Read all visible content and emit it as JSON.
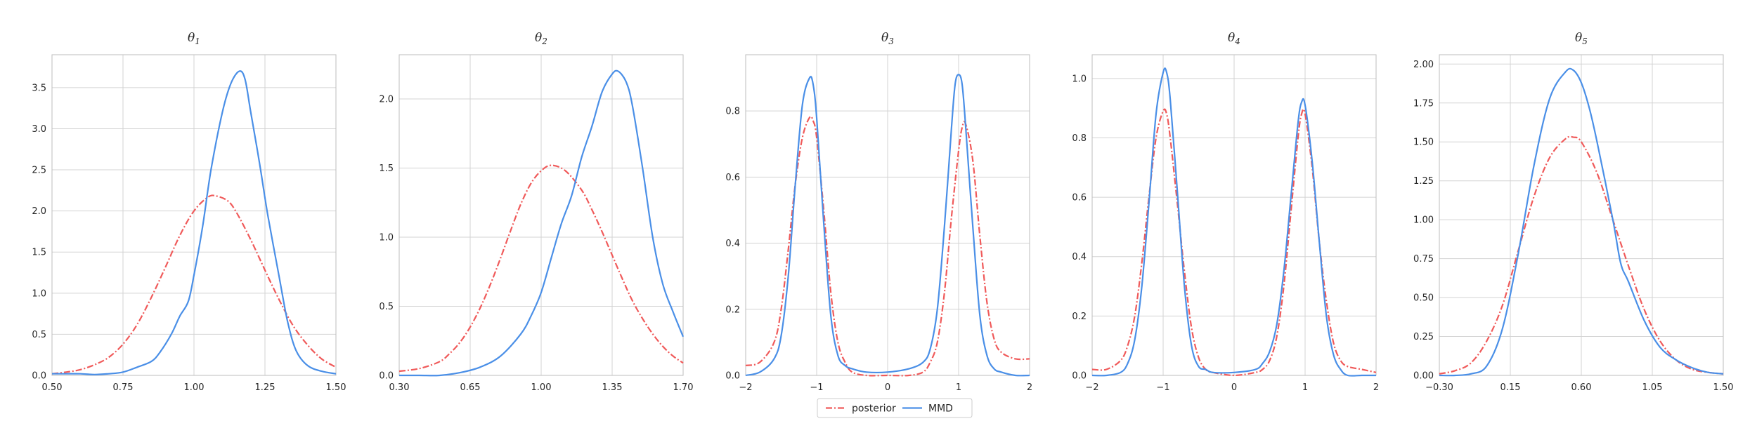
{
  "chart_data": [
    {
      "type": "line",
      "title": "θ1",
      "title_symbol": "θ",
      "title_sub": "1",
      "xlim": [
        0.5,
        1.5
      ],
      "ylim": [
        0,
        3.9
      ],
      "xticks": [
        0.5,
        0.75,
        1.0,
        1.25,
        1.5
      ],
      "xtick_labels": [
        "0.50",
        "0.75",
        "1.00",
        "1.25",
        "1.50"
      ],
      "yticks": [
        0,
        0.5,
        1.0,
        1.5,
        2.0,
        2.5,
        3.0,
        3.5
      ],
      "ytick_labels": [
        "0.0",
        "0.5",
        "1.0",
        "1.5",
        "2.0",
        "2.5",
        "3.0",
        "3.5"
      ],
      "series": [
        {
          "name": "posterior",
          "x": [
            0.5,
            0.55,
            0.6,
            0.65,
            0.7,
            0.75,
            0.8,
            0.85,
            0.9,
            0.95,
            1.0,
            1.05,
            1.08,
            1.12,
            1.15,
            1.2,
            1.25,
            1.3,
            1.35,
            1.4,
            1.45,
            1.5
          ],
          "y": [
            0.02,
            0.04,
            0.07,
            0.13,
            0.22,
            0.38,
            0.62,
            0.95,
            1.32,
            1.7,
            2.0,
            2.17,
            2.18,
            2.12,
            1.98,
            1.65,
            1.28,
            0.92,
            0.6,
            0.37,
            0.2,
            0.1
          ]
        },
        {
          "name": "MMD",
          "x": [
            0.5,
            0.55,
            0.6,
            0.65,
            0.7,
            0.75,
            0.8,
            0.85,
            0.88,
            0.92,
            0.95,
            0.98,
            1.0,
            1.03,
            1.06,
            1.1,
            1.13,
            1.16,
            1.18,
            1.2,
            1.23,
            1.26,
            1.3,
            1.33,
            1.36,
            1.4,
            1.45,
            1.5
          ],
          "y": [
            0.02,
            0.02,
            0.02,
            0.01,
            0.02,
            0.04,
            0.1,
            0.17,
            0.28,
            0.5,
            0.72,
            0.9,
            1.22,
            1.8,
            2.5,
            3.2,
            3.55,
            3.7,
            3.6,
            3.2,
            2.6,
            1.95,
            1.2,
            0.65,
            0.3,
            0.12,
            0.05,
            0.02
          ]
        }
      ]
    },
    {
      "type": "line",
      "title": "θ2",
      "title_symbol": "θ",
      "title_sub": "2",
      "xlim": [
        0.3,
        1.7
      ],
      "ylim": [
        0,
        2.32
      ],
      "xticks": [
        0.3,
        0.65,
        1.0,
        1.35,
        1.7
      ],
      "xtick_labels": [
        "0.30",
        "0.65",
        "1.00",
        "1.35",
        "1.70"
      ],
      "yticks": [
        0,
        0.5,
        1.0,
        1.5,
        2.0
      ],
      "ytick_labels": [
        "0.0",
        "0.5",
        "1.0",
        "1.5",
        "2.0"
      ],
      "series": [
        {
          "name": "posterior",
          "x": [
            0.3,
            0.4,
            0.5,
            0.55,
            0.6,
            0.65,
            0.7,
            0.75,
            0.8,
            0.85,
            0.9,
            0.95,
            1.0,
            1.05,
            1.12,
            1.2,
            1.25,
            1.3,
            1.35,
            1.4,
            1.45,
            1.5,
            1.55,
            1.6,
            1.65,
            1.7
          ],
          "y": [
            0.03,
            0.05,
            0.1,
            0.16,
            0.24,
            0.35,
            0.49,
            0.66,
            0.85,
            1.05,
            1.24,
            1.39,
            1.48,
            1.52,
            1.48,
            1.34,
            1.2,
            1.04,
            0.87,
            0.7,
            0.54,
            0.41,
            0.3,
            0.21,
            0.14,
            0.09
          ]
        },
        {
          "name": "MMD",
          "x": [
            0.3,
            0.4,
            0.5,
            0.6,
            0.7,
            0.8,
            0.9,
            0.95,
            1.0,
            1.05,
            1.1,
            1.15,
            1.2,
            1.25,
            1.3,
            1.35,
            1.38,
            1.42,
            1.45,
            1.5,
            1.55,
            1.6,
            1.65,
            1.7
          ],
          "y": [
            0.0,
            0.0,
            0.0,
            0.02,
            0.06,
            0.14,
            0.3,
            0.43,
            0.6,
            0.85,
            1.1,
            1.3,
            1.58,
            1.8,
            2.05,
            2.18,
            2.2,
            2.12,
            1.95,
            1.5,
            1.0,
            0.66,
            0.46,
            0.28
          ]
        }
      ]
    },
    {
      "type": "line",
      "title": "θ3",
      "title_symbol": "θ",
      "title_sub": "3",
      "xlim": [
        -2,
        2
      ],
      "ylim": [
        0,
        0.97
      ],
      "xticks": [
        -2,
        -1,
        0,
        1,
        2
      ],
      "xtick_labels": [
        "−2",
        "−1",
        "0",
        "1",
        "2"
      ],
      "yticks": [
        0,
        0.2,
        0.4,
        0.6,
        0.8
      ],
      "ytick_labels": [
        "0.0",
        "0.2",
        "0.4",
        "0.6",
        "0.8"
      ],
      "series": [
        {
          "name": "posterior",
          "x": [
            -2.0,
            -1.8,
            -1.6,
            -1.5,
            -1.4,
            -1.3,
            -1.2,
            -1.1,
            -1.05,
            -1.0,
            -0.9,
            -0.8,
            -0.7,
            -0.6,
            -0.5,
            -0.3,
            0.0,
            0.3,
            0.5,
            0.6,
            0.7,
            0.8,
            0.9,
            1.0,
            1.05,
            1.1,
            1.2,
            1.3,
            1.4,
            1.5,
            1.6,
            1.8,
            2.0
          ],
          "y": [
            0.03,
            0.04,
            0.1,
            0.2,
            0.38,
            0.58,
            0.72,
            0.78,
            0.77,
            0.72,
            0.5,
            0.25,
            0.1,
            0.04,
            0.01,
            0.0,
            0.0,
            0.0,
            0.01,
            0.04,
            0.1,
            0.25,
            0.48,
            0.68,
            0.75,
            0.76,
            0.65,
            0.42,
            0.22,
            0.11,
            0.07,
            0.05,
            0.05
          ]
        },
        {
          "name": "MMD",
          "x": [
            -2.0,
            -1.8,
            -1.6,
            -1.5,
            -1.4,
            -1.3,
            -1.2,
            -1.1,
            -1.05,
            -1.0,
            -0.9,
            -0.8,
            -0.7,
            -0.6,
            -0.5,
            -0.3,
            0.0,
            0.3,
            0.5,
            0.6,
            0.7,
            0.8,
            0.9,
            0.95,
            1.0,
            1.05,
            1.1,
            1.2,
            1.3,
            1.4,
            1.5,
            1.6,
            1.8,
            2.0
          ],
          "y": [
            0.0,
            0.01,
            0.05,
            0.12,
            0.3,
            0.58,
            0.82,
            0.9,
            0.88,
            0.78,
            0.46,
            0.18,
            0.06,
            0.03,
            0.02,
            0.01,
            0.01,
            0.02,
            0.04,
            0.08,
            0.2,
            0.45,
            0.75,
            0.88,
            0.91,
            0.88,
            0.75,
            0.45,
            0.18,
            0.06,
            0.02,
            0.01,
            0.0,
            0.0
          ]
        }
      ]
    },
    {
      "type": "line",
      "title": "θ4",
      "title_symbol": "θ",
      "title_sub": "4",
      "xlim": [
        -2,
        2
      ],
      "ylim": [
        0,
        1.08
      ],
      "xticks": [
        -2,
        -1,
        0,
        1,
        2
      ],
      "xtick_labels": [
        "−2",
        "−1",
        "0",
        "1",
        "2"
      ],
      "yticks": [
        0,
        0.2,
        0.4,
        0.6,
        0.8,
        1.0
      ],
      "ytick_labels": [
        "0.0",
        "0.2",
        "0.4",
        "0.6",
        "0.8",
        "1.0"
      ],
      "series": [
        {
          "name": "posterior",
          "x": [
            -2.0,
            -1.8,
            -1.6,
            -1.5,
            -1.4,
            -1.3,
            -1.2,
            -1.1,
            -1.0,
            -0.95,
            -0.9,
            -0.8,
            -0.7,
            -0.6,
            -0.5,
            -0.4,
            -0.3,
            0.0,
            0.3,
            0.4,
            0.5,
            0.6,
            0.7,
            0.8,
            0.9,
            0.95,
            1.0,
            1.1,
            1.2,
            1.3,
            1.4,
            1.5,
            1.6,
            1.8,
            2.0
          ],
          "y": [
            0.02,
            0.02,
            0.05,
            0.1,
            0.2,
            0.38,
            0.6,
            0.8,
            0.89,
            0.88,
            0.8,
            0.58,
            0.35,
            0.16,
            0.06,
            0.02,
            0.01,
            0.0,
            0.01,
            0.02,
            0.05,
            0.13,
            0.3,
            0.55,
            0.8,
            0.88,
            0.88,
            0.7,
            0.45,
            0.25,
            0.11,
            0.05,
            0.03,
            0.02,
            0.01
          ]
        },
        {
          "name": "MMD",
          "x": [
            -2.0,
            -1.8,
            -1.6,
            -1.5,
            -1.4,
            -1.3,
            -1.2,
            -1.1,
            -1.0,
            -0.95,
            -0.9,
            -0.8,
            -0.7,
            -0.6,
            -0.5,
            -0.4,
            -0.3,
            0.0,
            0.3,
            0.4,
            0.5,
            0.6,
            0.7,
            0.8,
            0.9,
            0.95,
            1.0,
            1.1,
            1.2,
            1.3,
            1.4,
            1.5,
            1.6,
            1.8,
            2.0
          ],
          "y": [
            0.0,
            0.0,
            0.01,
            0.04,
            0.12,
            0.3,
            0.58,
            0.88,
            1.02,
            1.02,
            0.93,
            0.62,
            0.3,
            0.1,
            0.03,
            0.02,
            0.01,
            0.01,
            0.02,
            0.04,
            0.08,
            0.17,
            0.35,
            0.6,
            0.85,
            0.92,
            0.91,
            0.72,
            0.45,
            0.2,
            0.07,
            0.02,
            0.0,
            0.0,
            0.0
          ]
        }
      ]
    },
    {
      "type": "line",
      "title": "θ5",
      "title_symbol": "θ",
      "title_sub": "5",
      "xlim": [
        -0.3,
        1.5
      ],
      "ylim": [
        0,
        2.06
      ],
      "xticks": [
        -0.3,
        0.15,
        0.6,
        1.05,
        1.5
      ],
      "xtick_labels": [
        "−0.30",
        "0.15",
        "0.60",
        "1.05",
        "1.50"
      ],
      "yticks": [
        0,
        0.25,
        0.5,
        0.75,
        1.0,
        1.25,
        1.5,
        1.75,
        2.0
      ],
      "ytick_labels": [
        "0.00",
        "0.25",
        "0.50",
        "0.75",
        "1.00",
        "1.25",
        "1.50",
        "1.75",
        "2.00"
      ],
      "series": [
        {
          "name": "posterior",
          "x": [
            -0.3,
            -0.2,
            -0.1,
            0.0,
            0.1,
            0.2,
            0.3,
            0.4,
            0.5,
            0.55,
            0.6,
            0.7,
            0.8,
            0.9,
            1.0,
            1.1,
            1.2,
            1.3,
            1.4,
            1.5
          ],
          "y": [
            0.01,
            0.03,
            0.08,
            0.22,
            0.45,
            0.8,
            1.15,
            1.4,
            1.52,
            1.53,
            1.5,
            1.3,
            1.0,
            0.7,
            0.42,
            0.22,
            0.1,
            0.04,
            0.02,
            0.01
          ]
        },
        {
          "name": "MMD",
          "x": [
            -0.3,
            -0.2,
            -0.1,
            0.0,
            0.1,
            0.2,
            0.3,
            0.4,
            0.5,
            0.55,
            0.6,
            0.65,
            0.7,
            0.8,
            0.85,
            0.9,
            1.0,
            1.1,
            1.2,
            1.3,
            1.4,
            1.5
          ],
          "y": [
            0.0,
            0.0,
            0.01,
            0.06,
            0.3,
            0.78,
            1.35,
            1.78,
            1.95,
            1.96,
            1.88,
            1.72,
            1.5,
            1.0,
            0.72,
            0.6,
            0.35,
            0.18,
            0.1,
            0.05,
            0.02,
            0.01
          ]
        }
      ]
    }
  ],
  "legend": {
    "items": [
      {
        "label": "posterior",
        "color": "#f05a5a",
        "style": "dash-dot"
      },
      {
        "label": "MMD",
        "color": "#4a8fe7",
        "style": "solid"
      }
    ],
    "placement": "bottom-center"
  },
  "colors": {
    "posterior": "#f05a5a",
    "MMD": "#4a8fe7",
    "grid": "#d3d3d3",
    "axis": "#bdbdbd"
  }
}
